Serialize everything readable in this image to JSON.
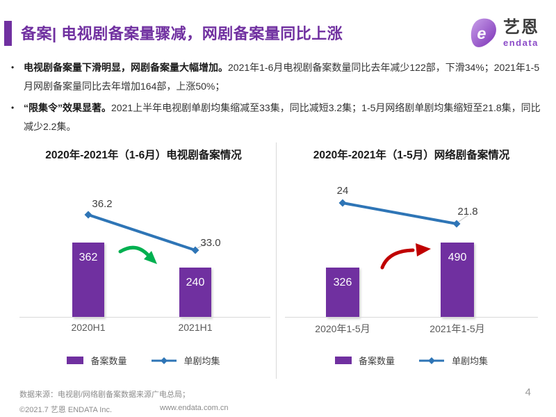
{
  "slide": {
    "title": "备案| 电视剧备案量骤减，网剧备案量同比上涨",
    "page_number": "4"
  },
  "logo": {
    "name_cn": "艺恩",
    "name_en": "endata"
  },
  "bullets": [
    {
      "bold": "电视剧备案量下滑明显，网剧备案量大幅增加。",
      "text": "2021年1-6月电视剧备案数量同比去年减少122部，下滑34%；2021年1-5月网剧备案量同比去年增加164部，上涨50%；"
    },
    {
      "bold": "“限集令”效果显著。",
      "text": "2021上半年电视剧单剧均集缩减至33集，同比减短3.2集；1-5月网络剧单剧均集缩短至21.8集，同比减少2.2集。"
    }
  ],
  "chart_data": [
    {
      "type": "bar+line",
      "title": "2020年-2021年（1-6月）电视剧备案情况",
      "categories": [
        "2020H1",
        "2021H1"
      ],
      "series": [
        {
          "name": "备案数量",
          "type": "bar",
          "color": "#7030A0",
          "values": [
            362,
            240
          ],
          "labels": [
            "362",
            "240"
          ]
        },
        {
          "name": "单剧均集",
          "type": "line",
          "color": "#2E75B6",
          "values": [
            36.2,
            33.0
          ],
          "labels": [
            "36.2",
            "33.0"
          ]
        }
      ],
      "annotation": "green-down-arrow",
      "legend_position": "bottom"
    },
    {
      "type": "bar+line",
      "title": "2020年-2021年（1-5月）网络剧备案情况",
      "categories": [
        "2020年1-5月",
        "2021年1-5月"
      ],
      "series": [
        {
          "name": "备案数量",
          "type": "bar",
          "color": "#7030A0",
          "values": [
            326,
            490
          ],
          "labels": [
            "326",
            "490"
          ]
        },
        {
          "name": "单剧均集",
          "type": "line",
          "color": "#2E75B6",
          "values": [
            24,
            21.8
          ],
          "labels": [
            "24",
            "21.8"
          ]
        }
      ],
      "annotation": "red-up-arrow",
      "legend_position": "bottom"
    }
  ],
  "footer": {
    "source": "数据来源：电视剧/网络剧备案数据来源广电总局；",
    "copyright": "©2021.7 艺恩 ENDATA Inc.",
    "website": "www.endata.com.cn"
  },
  "colors": {
    "accent_purple": "#7030A0",
    "line_blue": "#2E75B6",
    "arrow_green": "#00B050",
    "arrow_red": "#C00000",
    "baseline_gray": "#D9D9D9",
    "footer_gray": "#8C8C8C"
  }
}
